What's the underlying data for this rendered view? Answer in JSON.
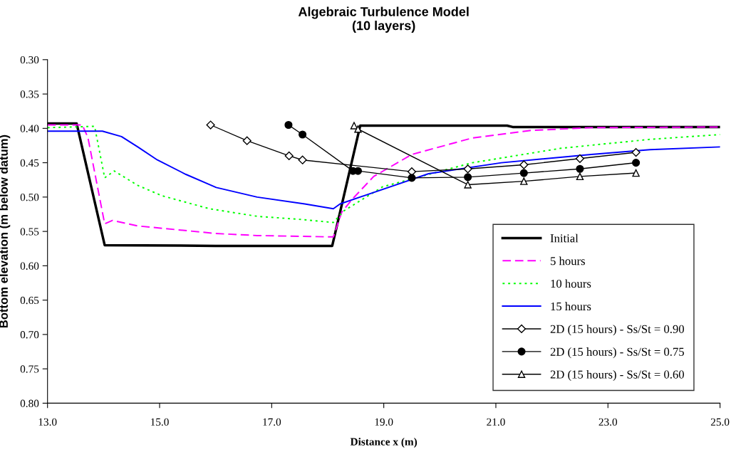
{
  "chart_data": {
    "type": "line",
    "title": "Algebraic Turbulence Model\n(10 layers)",
    "xlabel": "Distance x (m)",
    "ylabel": "Bottom elevation (m below datum)",
    "xlim": [
      13,
      25
    ],
    "xticks": [
      {
        "value": 13,
        "label": "13.0"
      },
      {
        "value": 15,
        "label": "15.0"
      },
      {
        "value": 17,
        "label": "17.0"
      },
      {
        "value": 19,
        "label": "19.0"
      },
      {
        "value": 21,
        "label": "21.0"
      },
      {
        "value": 23,
        "label": "23.0"
      },
      {
        "value": 25,
        "label": "25.0"
      }
    ],
    "ylim": [
      0.8,
      0.3
    ],
    "yticks": [
      {
        "value": 0.3,
        "label": "0.30"
      },
      {
        "value": 0.35,
        "label": "0.35"
      },
      {
        "value": 0.4,
        "label": "0.40"
      },
      {
        "value": 0.45,
        "label": "0.45"
      },
      {
        "value": 0.5,
        "label": "0.50"
      },
      {
        "value": 0.55,
        "label": "0.55"
      },
      {
        "value": 0.6,
        "label": "0.60"
      },
      {
        "value": 0.65,
        "label": "0.65"
      },
      {
        "value": 0.7,
        "label": "0.70"
      },
      {
        "value": 0.75,
        "label": "0.75"
      },
      {
        "value": 0.8,
        "label": "0.80"
      }
    ],
    "grid": false,
    "legend": "bottom right",
    "series": [
      {
        "name": "Initial",
        "color": "#000000",
        "line_style": "solid",
        "marker": "none",
        "x": [
          13,
          13.52,
          14.02,
          16,
          18.08,
          18.58,
          21.2,
          21.3,
          25
        ],
        "values": [
          0.393,
          0.393,
          0.57,
          0.571,
          0.571,
          0.396,
          0.396,
          0.398,
          0.398
        ]
      },
      {
        "name": "5 hours",
        "color": "#ff00ff",
        "line_style": "dashed",
        "marker": "none",
        "x": [
          13,
          13.62,
          13.72,
          14.02,
          14.16,
          14.61,
          16.0,
          16.74,
          18.1,
          18.25,
          18.45,
          18.82,
          19.5,
          20.58,
          21.63,
          22.7,
          25
        ],
        "values": [
          0.395,
          0.395,
          0.413,
          0.539,
          0.534,
          0.542,
          0.553,
          0.556,
          0.558,
          0.522,
          0.502,
          0.47,
          0.438,
          0.414,
          0.403,
          0.399,
          0.398
        ]
      },
      {
        "name": "10 hours",
        "color": "#00ff00",
        "line_style": "dotted",
        "marker": "none",
        "x": [
          13,
          13.84,
          14.02,
          14.19,
          14.61,
          15.04,
          15.89,
          16.74,
          17.59,
          18.1,
          18.29,
          18.98,
          20.58,
          22.16,
          23.75,
          25
        ],
        "values": [
          0.399,
          0.397,
          0.472,
          0.462,
          0.483,
          0.498,
          0.517,
          0.528,
          0.533,
          0.537,
          0.52,
          0.485,
          0.45,
          0.429,
          0.416,
          0.409
        ]
      },
      {
        "name": "15 hours",
        "color": "#0000ff",
        "line_style": "solid",
        "marker": "none",
        "x": [
          13,
          13.98,
          14.32,
          14.61,
          14.96,
          15.47,
          16.01,
          16.74,
          17.59,
          18.1,
          18.22,
          19.8,
          21.1,
          22.7,
          23.75,
          25
        ],
        "values": [
          0.404,
          0.404,
          0.412,
          0.427,
          0.446,
          0.467,
          0.486,
          0.5,
          0.51,
          0.517,
          0.51,
          0.466,
          0.45,
          0.438,
          0.431,
          0.427
        ]
      },
      {
        "name": "2D (15 hours) - Ss/St = 0.90",
        "color": "#000000",
        "line_style": "solid",
        "marker": "diamond",
        "x": [
          15.91,
          16.56,
          17.31,
          17.55,
          19.5,
          20.5,
          21.5,
          22.5,
          23.5
        ],
        "values": [
          0.395,
          0.418,
          0.44,
          0.446,
          0.463,
          0.459,
          0.453,
          0.444,
          0.435
        ]
      },
      {
        "name": "2D (15 hours) - Ss/St = 0.75",
        "color": "#000000",
        "line_style": "solid",
        "marker": "circle",
        "x": [
          17.3,
          17.55,
          18.45,
          18.54,
          19.5,
          20.5,
          21.5,
          22.5,
          23.5
        ],
        "values": [
          0.395,
          0.409,
          0.462,
          0.462,
          0.472,
          0.471,
          0.465,
          0.459,
          0.45
        ]
      },
      {
        "name": "2D (15 hours) - Ss/St = 0.60",
        "color": "#000000",
        "line_style": "solid",
        "marker": "triangle",
        "x": [
          18.47,
          18.54,
          20.5,
          21.5,
          22.5,
          23.5
        ],
        "values": [
          0.396,
          0.401,
          0.482,
          0.477,
          0.47,
          0.465
        ]
      }
    ]
  }
}
